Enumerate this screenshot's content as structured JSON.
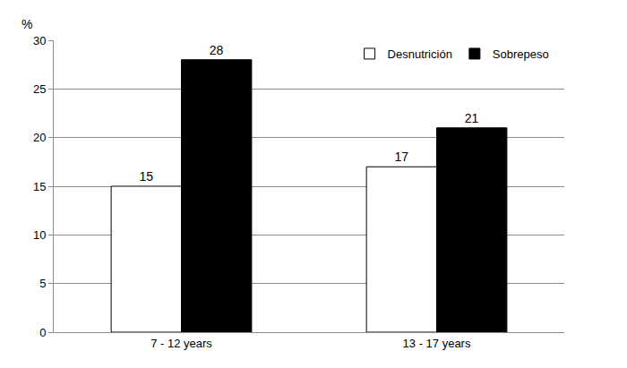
{
  "chart_data": {
    "type": "bar",
    "ylabel": "%",
    "categories": [
      "7 - 12 years",
      "13 - 17 years"
    ],
    "series": [
      {
        "name": "Desnutrición",
        "color": "#ffffff",
        "values": [
          15,
          17
        ]
      },
      {
        "name": "Sobrepeso",
        "color": "#000000",
        "values": [
          28,
          21
        ]
      }
    ],
    "ylim": [
      0,
      30
    ],
    "yticks": [
      0,
      5,
      10,
      15,
      20,
      25,
      30
    ],
    "grid": true,
    "legend": "top-right",
    "data_labels": true
  }
}
